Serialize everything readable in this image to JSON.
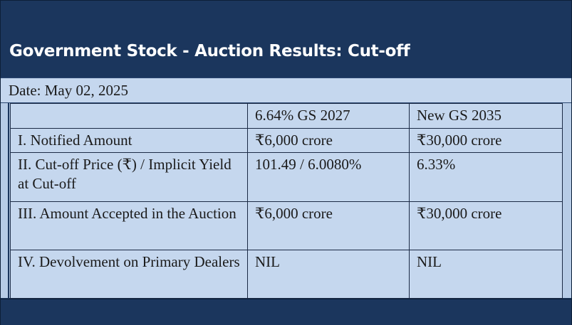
{
  "title": "Government Stock - Auction Results: Cut-off",
  "date": "Date: May 02, 2025",
  "table": {
    "header": [
      "",
      "6.64% GS 2027",
      "New GS 2035"
    ],
    "rows": [
      [
        "I. Notified Amount",
        "₹6,000 crore",
        "₹30,000 crore"
      ],
      [
        "II. Cut-off Price (₹) / Implicit Yield at Cut-off",
        "101.49 / 6.0080%",
        "6.33%"
      ],
      [
        "III. Amount Accepted in the Auction",
        "₹6,000 crore",
        "₹30,000 crore"
      ],
      [
        "IV. Devolvement on Primary Dealers",
        "NIL",
        "NIL"
      ]
    ]
  }
}
